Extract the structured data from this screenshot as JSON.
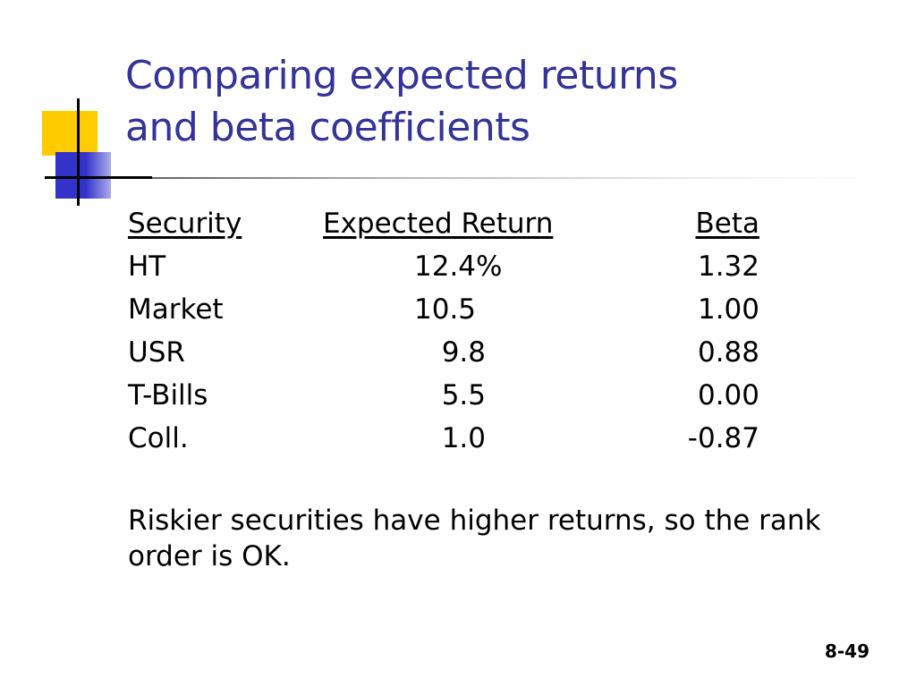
{
  "slide": {
    "title_line1": "Comparing expected returns",
    "title_line2": "and beta coefficients",
    "table": {
      "headers": [
        "Security",
        "Expected Return",
        "Beta"
      ],
      "rows": [
        {
          "security": "HT",
          "expected_return": "12.4%",
          "beta": "1.32"
        },
        {
          "security": "Market",
          "expected_return": "10.5",
          "beta": "1.00"
        },
        {
          "security": "USR",
          "expected_return": "9.8",
          "beta": "0.88"
        },
        {
          "security": "T-Bills",
          "expected_return": "5.5",
          "beta": "0.00"
        },
        {
          "security": "Coll.",
          "expected_return": "1.0",
          "beta": "-0.87"
        }
      ]
    },
    "note": "Riskier securities have higher returns, so the rank order is OK.",
    "slide_number": "8-49"
  },
  "colors": {
    "title": "#333399",
    "accent_yellow": "#ffcc00",
    "accent_blue": "#3333cc"
  }
}
